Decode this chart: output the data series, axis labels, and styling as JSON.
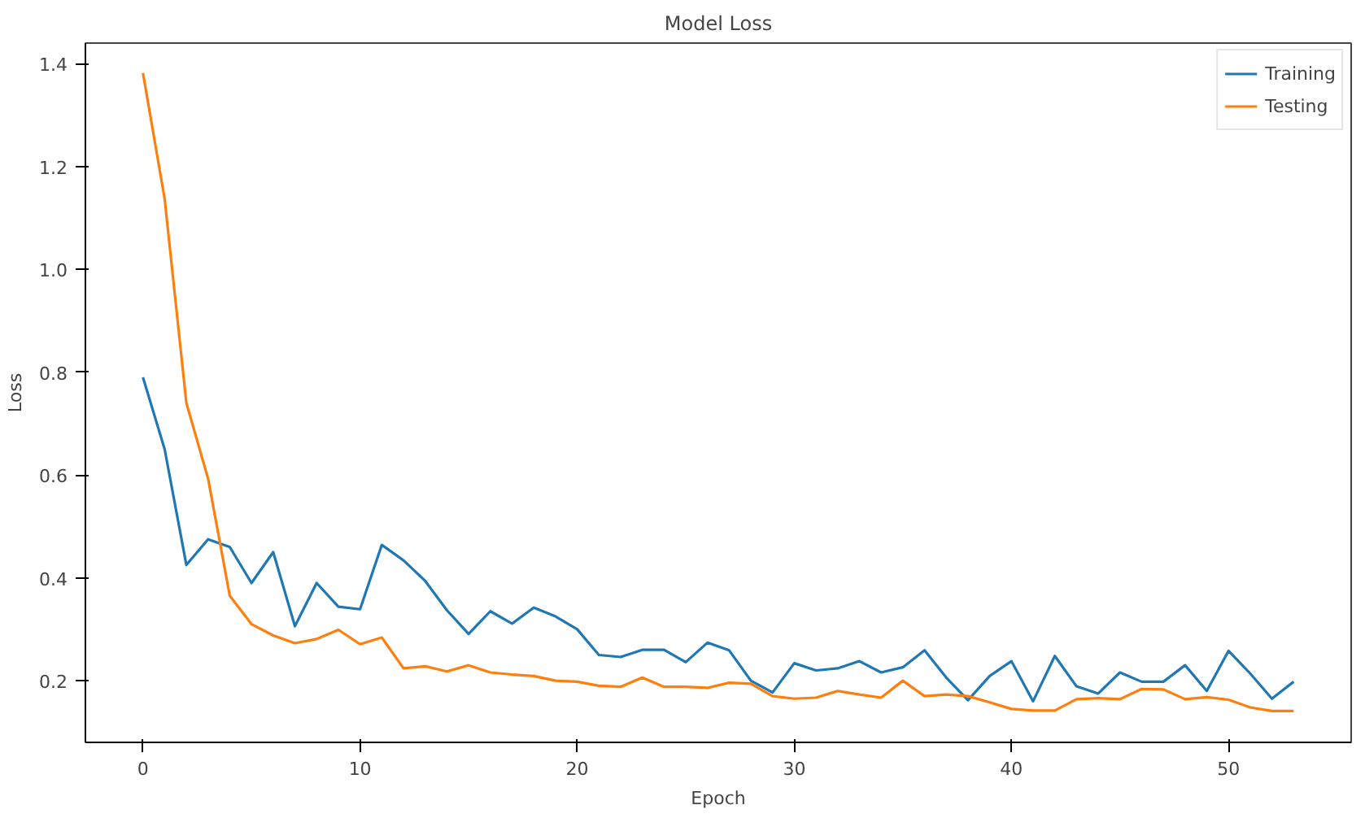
{
  "chart_data": {
    "type": "line",
    "title": "Model Loss",
    "xlabel": "Epoch",
    "ylabel": "Loss",
    "x": [
      0,
      1,
      2,
      3,
      4,
      5,
      6,
      7,
      8,
      9,
      10,
      11,
      12,
      13,
      14,
      15,
      16,
      17,
      18,
      19,
      20,
      21,
      22,
      23,
      24,
      25,
      26,
      27,
      28,
      29,
      30,
      31,
      32,
      33,
      34,
      35,
      36,
      37,
      38,
      39,
      40,
      41,
      42,
      43,
      44,
      45,
      46,
      47,
      48,
      49,
      50,
      51,
      52,
      53
    ],
    "series": [
      {
        "name": "Training",
        "color": "#1f77b4",
        "values": [
          0.79,
          0.65,
          0.425,
          0.475,
          0.46,
          0.39,
          0.45,
          0.306,
          0.39,
          0.344,
          0.339,
          0.464,
          0.434,
          0.394,
          0.337,
          0.291,
          0.335,
          0.311,
          0.342,
          0.325,
          0.3,
          0.25,
          0.246,
          0.26,
          0.26,
          0.236,
          0.274,
          0.259,
          0.2,
          0.177,
          0.234,
          0.22,
          0.224,
          0.238,
          0.216,
          0.226,
          0.259,
          0.206,
          0.162,
          0.209,
          0.238,
          0.16,
          0.248,
          0.189,
          0.175,
          0.216,
          0.198,
          0.198,
          0.23,
          0.18,
          0.258,
          0.214,
          0.165,
          0.198
        ]
      },
      {
        "name": "Testing",
        "color": "#ff7f0e",
        "values": [
          1.382,
          1.137,
          0.74,
          0.593,
          0.365,
          0.31,
          0.288,
          0.273,
          0.281,
          0.299,
          0.271,
          0.284,
          0.224,
          0.228,
          0.218,
          0.23,
          0.216,
          0.212,
          0.209,
          0.2,
          0.198,
          0.19,
          0.188,
          0.206,
          0.188,
          0.188,
          0.186,
          0.196,
          0.194,
          0.17,
          0.165,
          0.167,
          0.18,
          0.173,
          0.167,
          0.2,
          0.17,
          0.173,
          0.17,
          0.158,
          0.145,
          0.142,
          0.142,
          0.164,
          0.166,
          0.164,
          0.184,
          0.183,
          0.164,
          0.168,
          0.163,
          0.148,
          0.141,
          0.141
        ]
      }
    ],
    "xlim": [
      -2.65,
      55.65
    ],
    "ylim": [
      0.08,
      1.44
    ],
    "xticks": [
      0,
      10,
      20,
      30,
      40,
      50
    ],
    "yticks": [
      0.2,
      0.4,
      0.6,
      0.8,
      {
        "value": 1.0,
        "label": "1.0"
      },
      1.2,
      1.4
    ],
    "grid": false,
    "legend": "top right",
    "marker": "none",
    "line_style": "solid"
  }
}
